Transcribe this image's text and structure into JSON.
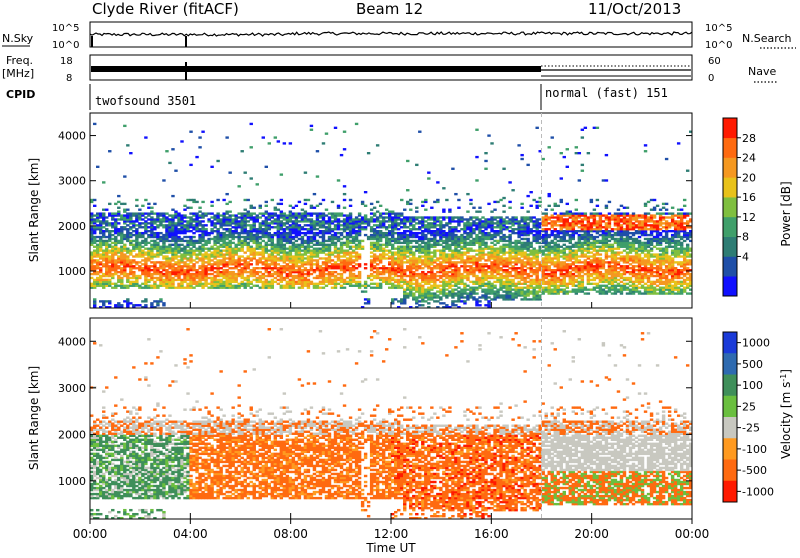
{
  "header": {
    "station": "Clyde River (fitACF)",
    "beam": "Beam 12",
    "date": "11/Oct/2013"
  },
  "top_panels": {
    "nsky_label": "N.Sky",
    "nsky_ticks": [
      "10^5",
      "10^0"
    ],
    "nsearch_label": "N.Search",
    "nsearch_ticks": [
      "10^5",
      "10^0"
    ],
    "freq_label_line1": "Freq.",
    "freq_label_line2": "[MHz]",
    "freq_ticks": [
      "18",
      "8"
    ],
    "nave_label": "Nave",
    "nave_ticks": [
      "60",
      "0"
    ],
    "cpid_label": "CPID",
    "cpid_modes": [
      {
        "name": "twofsound 3501",
        "start_hour": 0,
        "end_hour": 18
      },
      {
        "name": "normal (fast) 151",
        "start_hour": 18,
        "end_hour": 24
      }
    ]
  },
  "chart_data": [
    {
      "type": "heatmap",
      "quantity": "power",
      "ylabel": "Slant Range [km]",
      "xlabel": "Time UT",
      "x_range_hours": [
        0,
        24
      ],
      "ylim": [
        180,
        4500
      ],
      "yticks": [
        1000,
        2000,
        3000,
        4000
      ],
      "colorbar": {
        "label": "Power [dB]",
        "ticks": [
          "28",
          "24",
          "20",
          "16",
          "12",
          "8",
          "4"
        ],
        "levels": [
          0,
          4,
          8,
          12,
          16,
          20,
          24,
          28,
          32
        ],
        "colors": [
          "#1010ff",
          "#1f4fa8",
          "#2e7d74",
          "#3f9f6a",
          "#7fbf3f",
          "#e8c21a",
          "#f59820",
          "#ff6a10",
          "#ff1a00"
        ]
      }
    },
    {
      "type": "heatmap",
      "quantity": "velocity",
      "ylabel": "Slant Range [km]",
      "xlabel": "Time UT",
      "x_range_hours": [
        0,
        24
      ],
      "ylim": [
        180,
        4500
      ],
      "yticks": [
        1000,
        2000,
        3000,
        4000
      ],
      "colorbar": {
        "label": "Velocity [m s^-1]",
        "ticks": [
          "1000",
          "500",
          "100",
          "25",
          "-25",
          "-100",
          "-500",
          "-1000"
        ],
        "colors": [
          "#1a3ad8",
          "#2e6ab0",
          "#3f8f5a",
          "#6abf3f",
          "#c8c8c0",
          "#ff9a20",
          "#ff6a10",
          "#ff1a00"
        ]
      }
    }
  ],
  "xaxis": {
    "ticks": [
      "00:00",
      "04:00",
      "08:00",
      "12:00",
      "16:00",
      "20:00",
      "00:00"
    ],
    "label": "Time UT"
  }
}
